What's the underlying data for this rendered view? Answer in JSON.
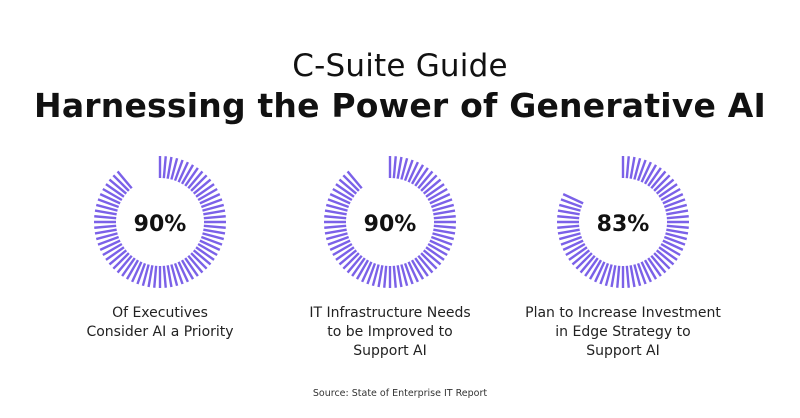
{
  "header": {
    "title": "C-Suite Guide",
    "subtitle": "Harnessing the Power of Generative AI"
  },
  "chart_data": {
    "type": "radial-progress",
    "color": "#7B61E8",
    "items": [
      {
        "value": 90,
        "label": "90%",
        "caption": [
          "Of Executives",
          "Consider AI a Priority"
        ]
      },
      {
        "value": 90,
        "label": "90%",
        "caption": [
          "IT Infrastructure Needs",
          "to be Improved to",
          "Support AI"
        ]
      },
      {
        "value": 83,
        "label": "83%",
        "caption": [
          "Plan to Increase Investment",
          "in Edge Strategy to",
          "Support AI"
        ]
      }
    ]
  },
  "footer": {
    "source": "Source: State of Enterprise IT Report"
  }
}
